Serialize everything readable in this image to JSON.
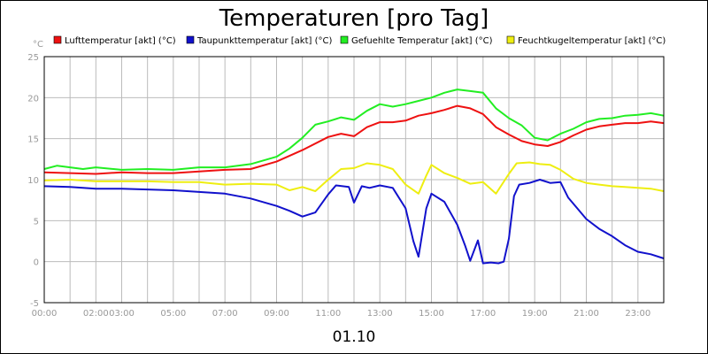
{
  "chart_data": {
    "type": "line",
    "title": "Temperaturen [pro Tag]",
    "unit": "°C",
    "date_label": "01.10",
    "xlim": [
      0,
      24
    ],
    "ylim": [
      -5,
      25
    ],
    "y_ticks": [
      -5,
      0,
      5,
      10,
      15,
      20,
      25
    ],
    "x_ticks": [
      {
        "h": 0,
        "label": "00:00"
      },
      {
        "h": 2,
        "label": "02:00"
      },
      {
        "h": 3,
        "label": "03:00"
      },
      {
        "h": 5,
        "label": "05:00"
      },
      {
        "h": 7,
        "label": "07:00"
      },
      {
        "h": 9,
        "label": "09:00"
      },
      {
        "h": 11,
        "label": "11:00"
      },
      {
        "h": 13,
        "label": "13:00"
      },
      {
        "h": 15,
        "label": "15:00"
      },
      {
        "h": 17,
        "label": "17:00"
      },
      {
        "h": 19,
        "label": "19:00"
      },
      {
        "h": 21,
        "label": "21:00"
      },
      {
        "h": 23,
        "label": "23:00"
      }
    ],
    "grid": true,
    "legend_position": "top",
    "series": [
      {
        "name": "Lufttemperatur [akt] (°C)",
        "color": "#ee1111",
        "points": [
          [
            0,
            10.9
          ],
          [
            1,
            10.8
          ],
          [
            2,
            10.7
          ],
          [
            3,
            10.9
          ],
          [
            4,
            10.8
          ],
          [
            5,
            10.8
          ],
          [
            6,
            11.0
          ],
          [
            7,
            11.2
          ],
          [
            8,
            11.3
          ],
          [
            9,
            12.2
          ],
          [
            10,
            13.6
          ],
          [
            11,
            15.2
          ],
          [
            11.5,
            15.6
          ],
          [
            12,
            15.3
          ],
          [
            12.5,
            16.4
          ],
          [
            13,
            17.0
          ],
          [
            13.5,
            17.0
          ],
          [
            14,
            17.2
          ],
          [
            14.5,
            17.8
          ],
          [
            15,
            18.1
          ],
          [
            15.5,
            18.5
          ],
          [
            16,
            19.0
          ],
          [
            16.5,
            18.7
          ],
          [
            17,
            18.0
          ],
          [
            17.5,
            16.4
          ],
          [
            18,
            15.5
          ],
          [
            18.5,
            14.7
          ],
          [
            19,
            14.3
          ],
          [
            19.5,
            14.1
          ],
          [
            20,
            14.6
          ],
          [
            20.5,
            15.4
          ],
          [
            21,
            16.1
          ],
          [
            21.5,
            16.5
          ],
          [
            22,
            16.7
          ],
          [
            22.5,
            16.9
          ],
          [
            23,
            16.9
          ],
          [
            23.5,
            17.1
          ],
          [
            24,
            16.9
          ]
        ]
      },
      {
        "name": "Taupunkttemperatur [akt] (°C)",
        "color": "#1111cc",
        "points": [
          [
            0,
            9.2
          ],
          [
            1,
            9.1
          ],
          [
            2,
            8.9
          ],
          [
            3,
            8.9
          ],
          [
            4,
            8.8
          ],
          [
            5,
            8.7
          ],
          [
            6,
            8.5
          ],
          [
            7,
            8.3
          ],
          [
            8,
            7.7
          ],
          [
            9,
            6.8
          ],
          [
            9.5,
            6.2
          ],
          [
            10,
            5.5
          ],
          [
            10.5,
            6.0
          ],
          [
            11,
            8.2
          ],
          [
            11.3,
            9.3
          ],
          [
            11.8,
            9.1
          ],
          [
            12,
            7.2
          ],
          [
            12.3,
            9.2
          ],
          [
            12.6,
            9.0
          ],
          [
            13,
            9.3
          ],
          [
            13.5,
            9.0
          ],
          [
            14,
            6.5
          ],
          [
            14.3,
            2.5
          ],
          [
            14.5,
            0.6
          ],
          [
            14.8,
            6.5
          ],
          [
            15,
            8.3
          ],
          [
            15.5,
            7.3
          ],
          [
            16,
            4.5
          ],
          [
            16.3,
            2.0
          ],
          [
            16.5,
            0.1
          ],
          [
            16.8,
            2.6
          ],
          [
            17,
            -0.2
          ],
          [
            17.3,
            -0.1
          ],
          [
            17.6,
            -0.2
          ],
          [
            17.8,
            0.0
          ],
          [
            18,
            2.8
          ],
          [
            18.2,
            8.0
          ],
          [
            18.4,
            9.4
          ],
          [
            18.8,
            9.6
          ],
          [
            19.2,
            10.0
          ],
          [
            19.6,
            9.6
          ],
          [
            20,
            9.7
          ],
          [
            20.3,
            7.8
          ],
          [
            20.6,
            6.7
          ],
          [
            21,
            5.2
          ],
          [
            21.5,
            4.0
          ],
          [
            22,
            3.1
          ],
          [
            22.5,
            2.0
          ],
          [
            23,
            1.2
          ],
          [
            23.5,
            0.9
          ],
          [
            24,
            0.4
          ]
        ]
      },
      {
        "name": "Gefuehlte Temperatur [akt] (°C)",
        "color": "#22ee22",
        "points": [
          [
            0,
            11.3
          ],
          [
            0.5,
            11.7
          ],
          [
            1,
            11.5
          ],
          [
            1.5,
            11.3
          ],
          [
            2,
            11.5
          ],
          [
            3,
            11.2
          ],
          [
            4,
            11.3
          ],
          [
            5,
            11.2
          ],
          [
            6,
            11.5
          ],
          [
            7,
            11.5
          ],
          [
            8,
            11.9
          ],
          [
            9,
            12.8
          ],
          [
            9.5,
            13.8
          ],
          [
            10,
            15.1
          ],
          [
            10.5,
            16.7
          ],
          [
            11,
            17.1
          ],
          [
            11.5,
            17.6
          ],
          [
            12,
            17.3
          ],
          [
            12.5,
            18.4
          ],
          [
            13,
            19.2
          ],
          [
            13.5,
            18.9
          ],
          [
            14,
            19.2
          ],
          [
            14.5,
            19.6
          ],
          [
            15,
            20.0
          ],
          [
            15.5,
            20.6
          ],
          [
            16,
            21.0
          ],
          [
            16.5,
            20.8
          ],
          [
            17,
            20.6
          ],
          [
            17.5,
            18.7
          ],
          [
            18,
            17.5
          ],
          [
            18.5,
            16.6
          ],
          [
            19,
            15.1
          ],
          [
            19.5,
            14.8
          ],
          [
            20,
            15.6
          ],
          [
            20.5,
            16.2
          ],
          [
            21,
            17.0
          ],
          [
            21.5,
            17.4
          ],
          [
            22,
            17.5
          ],
          [
            22.5,
            17.8
          ],
          [
            23,
            17.9
          ],
          [
            23.5,
            18.1
          ],
          [
            24,
            17.8
          ]
        ]
      },
      {
        "name": "Feuchtkugeltemperatur [akt] (°C)",
        "color": "#eeee11",
        "points": [
          [
            0,
            9.9
          ],
          [
            1,
            10.0
          ],
          [
            2,
            9.8
          ],
          [
            3,
            9.8
          ],
          [
            4,
            9.8
          ],
          [
            5,
            9.7
          ],
          [
            6,
            9.7
          ],
          [
            7,
            9.4
          ],
          [
            8,
            9.5
          ],
          [
            9,
            9.4
          ],
          [
            9.5,
            8.7
          ],
          [
            10,
            9.1
          ],
          [
            10.5,
            8.6
          ],
          [
            11,
            10.0
          ],
          [
            11.5,
            11.3
          ],
          [
            12,
            11.4
          ],
          [
            12.5,
            12.0
          ],
          [
            13,
            11.8
          ],
          [
            13.5,
            11.3
          ],
          [
            14,
            9.4
          ],
          [
            14.5,
            8.3
          ],
          [
            14.8,
            10.5
          ],
          [
            15,
            11.8
          ],
          [
            15.5,
            10.8
          ],
          [
            16,
            10.2
          ],
          [
            16.5,
            9.5
          ],
          [
            17,
            9.7
          ],
          [
            17.5,
            8.3
          ],
          [
            18,
            10.7
          ],
          [
            18.3,
            12.0
          ],
          [
            18.8,
            12.1
          ],
          [
            19.2,
            11.9
          ],
          [
            19.6,
            11.8
          ],
          [
            20,
            11.2
          ],
          [
            20.5,
            10.1
          ],
          [
            21,
            9.6
          ],
          [
            21.5,
            9.4
          ],
          [
            22,
            9.2
          ],
          [
            22.5,
            9.1
          ],
          [
            23,
            9.0
          ],
          [
            23.5,
            8.9
          ],
          [
            24,
            8.6
          ]
        ]
      }
    ]
  }
}
